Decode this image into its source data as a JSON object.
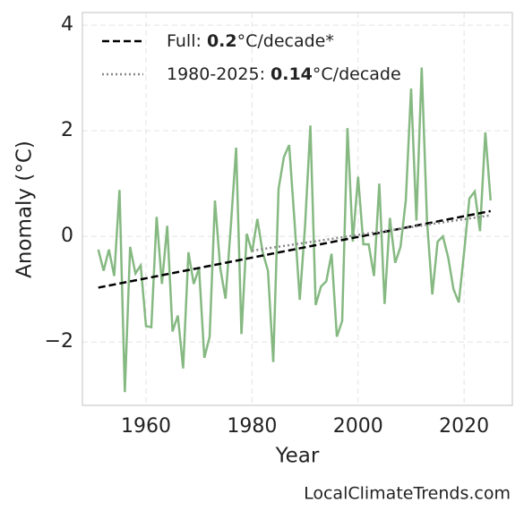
{
  "chart_data": {
    "type": "line",
    "xlabel": "Year",
    "ylabel": "Anomaly (°C)",
    "source": "LocalClimateTrends.com",
    "xlim": [
      1948,
      2029.1
    ],
    "ylim": [
      -3.2,
      4.24
    ],
    "xticks": [
      1960,
      1980,
      2000,
      2020
    ],
    "yticks": [
      {
        "value": -2,
        "label": "−2"
      },
      0,
      2,
      4
    ],
    "grid": true,
    "legend": "upper left",
    "series": [
      {
        "color": "#86b982",
        "style": "solid",
        "x": [
          1951,
          1952,
          1953,
          1954,
          1955,
          1956,
          1957,
          1958,
          1959,
          1960,
          1961,
          1962,
          1963,
          1964,
          1965,
          1966,
          1967,
          1968,
          1969,
          1970,
          1971,
          1972,
          1973,
          1974,
          1975,
          1976,
          1977,
          1978,
          1979,
          1980,
          1981,
          1982,
          1983,
          1984,
          1985,
          1986,
          1987,
          1988,
          1989,
          1990,
          1991,
          1992,
          1993,
          1994,
          1995,
          1996,
          1997,
          1998,
          1999,
          2000,
          2001,
          2002,
          2003,
          2004,
          2005,
          2006,
          2007,
          2008,
          2009,
          2010,
          2011,
          2012,
          2013,
          2014,
          2015,
          2016,
          2017,
          2018,
          2019,
          2020,
          2021,
          2022,
          2023,
          2024,
          2025
        ],
        "values": [
          -0.25,
          -0.65,
          -0.25,
          -0.75,
          0.88,
          -2.95,
          -0.2,
          -0.7,
          -0.55,
          -1.7,
          -1.72,
          0.37,
          -0.9,
          0.2,
          -1.8,
          -1.5,
          -2.5,
          -0.3,
          -0.9,
          -0.6,
          -2.3,
          -1.9,
          0.68,
          -0.6,
          -1.18,
          0.2,
          1.68,
          -1.85,
          0.05,
          -0.3,
          0.33,
          -0.3,
          -0.65,
          -2.38,
          0.9,
          1.5,
          1.73,
          0.3,
          -1.2,
          0.2,
          2.1,
          -1.3,
          -0.95,
          -0.85,
          -0.33,
          -1.9,
          -1.6,
          2.05,
          -0.1,
          1.13,
          -0.15,
          -0.15,
          -0.75,
          1.0,
          -1.28,
          0.35,
          -0.5,
          -0.2,
          0.68,
          2.8,
          0.3,
          3.2,
          0.3,
          -1.1,
          -0.1,
          0.0,
          -0.4,
          -1.0,
          -1.25,
          -0.3,
          0.72,
          0.85,
          0.1,
          1.97,
          0.68
        ]
      },
      {
        "color": "#000000",
        "style": "dashed",
        "name_parts": [
          "Full: ",
          "0.2",
          "°C/decade*"
        ],
        "x": [
          1951,
          2025
        ],
        "values": [
          -0.97,
          0.48
        ]
      },
      {
        "color": "#888888",
        "style": "dotted",
        "name_parts": [
          "1980-2025: ",
          "0.14",
          "°C/decade"
        ],
        "x": [
          1980,
          2025
        ],
        "values": [
          -0.27,
          0.4
        ]
      }
    ]
  }
}
